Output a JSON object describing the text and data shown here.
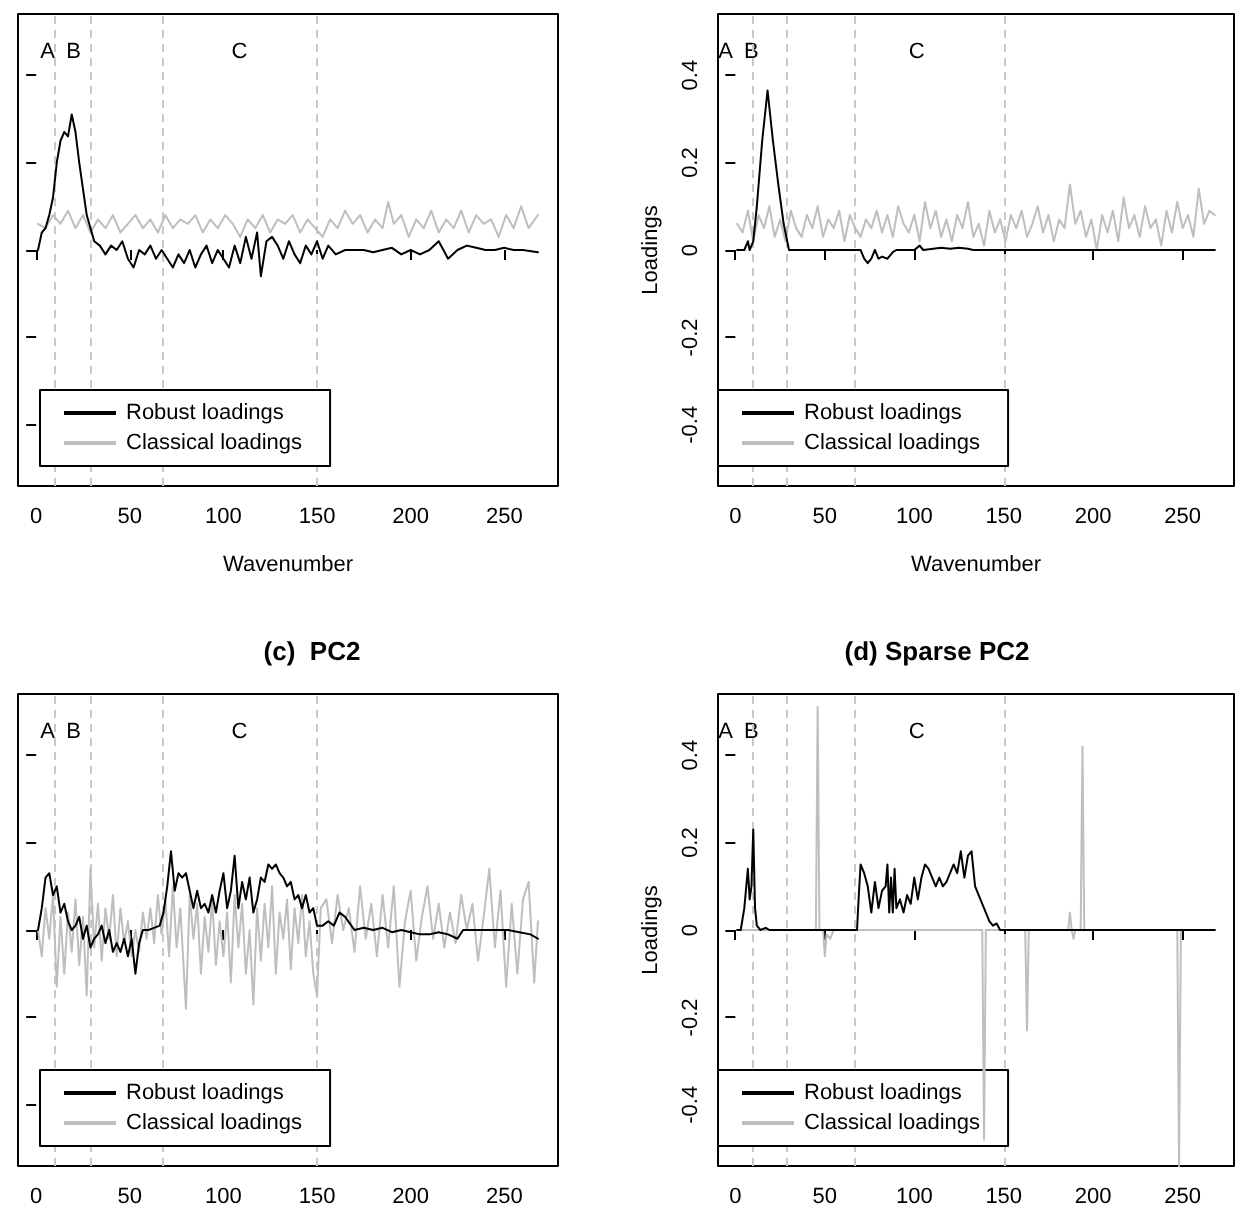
{
  "chart_data": [
    {
      "type": "line",
      "xlabel": "Wavenumber",
      "xlim": [
        -9.7,
        278.7
      ],
      "xticks": [
        0,
        50,
        100,
        150,
        200,
        250
      ],
      "ylim": [
        -0.54,
        0.54
      ],
      "yticks": [
        {
          "value": -0.4,
          "label": null
        },
        {
          "value": -0.2,
          "label": null
        },
        {
          "value": 0,
          "label": null
        },
        {
          "value": 0.2,
          "label": null
        },
        {
          "value": 0.4,
          "label": null
        }
      ],
      "tick_labels": "x",
      "grid": false,
      "legend": "bottom left",
      "marker": "none",
      "line_style": "solid",
      "ref_lines": [
        {
          "axis": "x",
          "value": 10,
          "color": "#c8c8c8",
          "line_style": "dashed"
        },
        {
          "axis": "x",
          "value": 29,
          "color": "#c8c8c8",
          "line_style": "dashed"
        },
        {
          "axis": "x",
          "value": 67,
          "color": "#c8c8c8",
          "line_style": "dashed"
        },
        {
          "axis": "x",
          "value": 150,
          "color": "#c8c8c8",
          "line_style": "dashed"
        }
      ],
      "annotations": [
        "A",
        "B",
        "C"
      ],
      "series": [
        {
          "name": "Robust loadings",
          "color": "#000000",
          "x": [
            1,
            3,
            5,
            7,
            9,
            11,
            13,
            15,
            17,
            19,
            21,
            23,
            25,
            27,
            29,
            31,
            34,
            37,
            40,
            43,
            46,
            49,
            52,
            55,
            58,
            61,
            64,
            67,
            70,
            73,
            76,
            79,
            82,
            85,
            88,
            91,
            94,
            97,
            100,
            103,
            106,
            109,
            112,
            115,
            118,
            120,
            123,
            126,
            129,
            132,
            135,
            138,
            141,
            144,
            147,
            150,
            153,
            156,
            160,
            165,
            170,
            175,
            180,
            185,
            190,
            195,
            200,
            205,
            210,
            215,
            220,
            225,
            230,
            235,
            240,
            245,
            250,
            255,
            260,
            268
          ],
          "values": [
            0.0,
            0.04,
            0.05,
            0.08,
            0.12,
            0.2,
            0.25,
            0.27,
            0.26,
            0.31,
            0.27,
            0.2,
            0.14,
            0.08,
            0.05,
            0.02,
            0.01,
            -0.01,
            0.01,
            0.0,
            0.02,
            -0.02,
            -0.04,
            0.0,
            -0.01,
            0.01,
            -0.02,
            0.0,
            -0.02,
            -0.04,
            -0.01,
            -0.03,
            0.0,
            -0.04,
            -0.01,
            0.01,
            -0.03,
            0.0,
            -0.02,
            -0.04,
            0.01,
            -0.03,
            0.03,
            -0.02,
            0.04,
            -0.06,
            0.02,
            0.03,
            0.01,
            -0.02,
            0.02,
            -0.01,
            -0.03,
            0.01,
            -0.01,
            0.02,
            -0.02,
            0.01,
            -0.01,
            0.0,
            0.0,
            0.0,
            -0.005,
            0.0,
            0.005,
            -0.01,
            0.0,
            -0.01,
            0.0,
            0.02,
            -0.02,
            0.0,
            0.01,
            0.005,
            0.0,
            0.0,
            0.005,
            0.0,
            0.0,
            -0.005
          ]
        },
        {
          "name": "Classical loadings",
          "color": "#bebebe",
          "x": [
            1,
            5,
            9,
            13,
            17,
            21,
            25,
            29,
            33,
            37,
            41,
            45,
            49,
            53,
            57,
            61,
            65,
            69,
            73,
            77,
            81,
            85,
            89,
            93,
            97,
            101,
            105,
            109,
            113,
            117,
            121,
            125,
            129,
            133,
            137,
            141,
            145,
            149,
            153,
            157,
            161,
            165,
            169,
            173,
            177,
            181,
            185,
            188,
            191,
            195,
            199,
            203,
            207,
            211,
            215,
            219,
            223,
            227,
            231,
            235,
            239,
            243,
            247,
            251,
            255,
            259,
            263,
            268
          ],
          "values": [
            0.06,
            0.05,
            0.08,
            0.06,
            0.09,
            0.05,
            0.08,
            0.04,
            0.07,
            0.05,
            0.08,
            0.04,
            0.06,
            0.08,
            0.05,
            0.07,
            0.04,
            0.08,
            0.05,
            0.07,
            0.06,
            0.08,
            0.04,
            0.07,
            0.05,
            0.08,
            0.06,
            0.03,
            0.07,
            0.05,
            0.08,
            0.04,
            0.07,
            0.06,
            0.08,
            0.04,
            0.07,
            0.05,
            0.03,
            0.07,
            0.05,
            0.09,
            0.06,
            0.08,
            0.04,
            0.07,
            0.05,
            0.11,
            0.06,
            0.08,
            0.03,
            0.07,
            0.05,
            0.09,
            0.04,
            0.07,
            0.05,
            0.09,
            0.04,
            0.08,
            0.06,
            0.07,
            0.03,
            0.08,
            0.05,
            0.1,
            0.05,
            0.08
          ]
        }
      ]
    },
    {
      "type": "line",
      "xlabel": "Wavenumber",
      "ylabel": "Loadings",
      "xlim": [
        -9.7,
        278.7
      ],
      "xticks": [
        0,
        50,
        100,
        150,
        200,
        250
      ],
      "ylim": [
        -0.54,
        0.54
      ],
      "yticks": [
        -0.4,
        -0.2,
        0.0,
        0.2,
        0.4
      ],
      "grid": false,
      "legend": "bottom left",
      "marker": "none",
      "line_style": "solid",
      "ref_lines": [
        {
          "axis": "x",
          "value": 10,
          "color": "#c8c8c8",
          "line_style": "dashed"
        },
        {
          "axis": "x",
          "value": 29,
          "color": "#c8c8c8",
          "line_style": "dashed"
        },
        {
          "axis": "x",
          "value": 67,
          "color": "#c8c8c8",
          "line_style": "dashed"
        },
        {
          "axis": "x",
          "value": 150,
          "color": "#c8c8c8",
          "line_style": "dashed"
        }
      ],
      "annotations": [
        "A",
        "B",
        "C"
      ],
      "series": [
        {
          "name": "Robust loadings",
          "color": "#000000",
          "x": [
            1,
            5,
            7,
            8,
            10,
            12,
            15,
            18,
            21,
            24,
            27,
            30,
            70,
            72,
            74,
            76,
            78,
            80,
            82,
            85,
            88,
            90,
            100,
            103,
            105,
            115,
            120,
            125,
            130,
            133,
            268
          ],
          "values": [
            0,
            0,
            0.02,
            0.0,
            0.02,
            0.1,
            0.25,
            0.365,
            0.25,
            0.15,
            0.06,
            0.0,
            0.0,
            -0.02,
            -0.03,
            -0.02,
            0.0,
            -0.02,
            -0.015,
            -0.02,
            -0.005,
            0.0,
            0.0,
            0.01,
            0.0,
            0.005,
            0.003,
            0.005,
            0.003,
            0.0,
            0
          ]
        },
        {
          "name": "Classical loadings",
          "color": "#bebebe",
          "x": [
            1,
            4,
            7,
            10,
            13,
            16,
            19,
            22,
            25,
            28,
            31,
            34,
            37,
            40,
            43,
            46,
            49,
            52,
            55,
            58,
            61,
            64,
            67,
            70,
            73,
            76,
            79,
            82,
            85,
            88,
            91,
            94,
            97,
            100,
            103,
            106,
            109,
            112,
            115,
            118,
            121,
            124,
            127,
            130,
            133,
            136,
            139,
            142,
            145,
            148,
            151,
            154,
            157,
            160,
            163,
            166,
            169,
            172,
            175,
            178,
            181,
            184,
            187,
            190,
            193,
            196,
            199,
            202,
            205,
            208,
            211,
            214,
            217,
            220,
            223,
            226,
            229,
            232,
            235,
            238,
            241,
            244,
            247,
            250,
            253,
            256,
            259,
            262,
            265,
            268
          ],
          "values": [
            0.06,
            0.04,
            0.09,
            0.02,
            0.08,
            0.05,
            0.1,
            0.03,
            0.07,
            0.02,
            0.09,
            0.05,
            0.03,
            0.08,
            0.05,
            0.1,
            0.03,
            0.07,
            0.05,
            0.09,
            0.02,
            0.08,
            0.05,
            0.03,
            0.07,
            0.05,
            0.09,
            0.04,
            0.08,
            0.03,
            0.1,
            0.06,
            0.04,
            0.08,
            0.02,
            0.11,
            0.05,
            0.09,
            0.03,
            0.07,
            0.02,
            0.08,
            0.05,
            0.11,
            0.03,
            0.06,
            0.01,
            0.09,
            0.04,
            0.07,
            0.02,
            0.08,
            0.05,
            0.09,
            0.03,
            0.06,
            0.1,
            0.04,
            0.08,
            0.02,
            0.07,
            0.05,
            0.15,
            0.06,
            0.09,
            0.03,
            0.07,
            0.0,
            0.08,
            0.04,
            0.09,
            0.02,
            0.12,
            0.05,
            0.08,
            0.03,
            0.1,
            0.05,
            0.07,
            0.01,
            0.09,
            0.04,
            0.11,
            0.05,
            0.08,
            0.03,
            0.14,
            0.06,
            0.09,
            0.08
          ]
        }
      ]
    },
    {
      "type": "line",
      "title": "(c)  PC2",
      "xlim": [
        -9.7,
        278.7
      ],
      "xticks": [
        0,
        50,
        100,
        150,
        200,
        250
      ],
      "ylim": [
        -0.54,
        0.54
      ],
      "yticks": [
        {
          "value": -0.4,
          "label": null
        },
        {
          "value": -0.2,
          "label": null
        },
        {
          "value": 0,
          "label": null
        },
        {
          "value": 0.2,
          "label": null
        },
        {
          "value": 0.4,
          "label": null
        }
      ],
      "tick_labels": "x",
      "grid": false,
      "legend": "bottom left",
      "marker": "none",
      "line_style": "solid",
      "ref_lines": [
        {
          "axis": "x",
          "value": 10,
          "color": "#c8c8c8",
          "line_style": "dashed"
        },
        {
          "axis": "x",
          "value": 29,
          "color": "#c8c8c8",
          "line_style": "dashed"
        },
        {
          "axis": "x",
          "value": 67,
          "color": "#c8c8c8",
          "line_style": "dashed"
        },
        {
          "axis": "x",
          "value": 150,
          "color": "#c8c8c8",
          "line_style": "dashed"
        }
      ],
      "annotations": [
        "A",
        "B",
        "C"
      ],
      "series": [
        {
          "name": "Robust loadings",
          "color": "#000000",
          "x": [
            1,
            3,
            5,
            7,
            9,
            11,
            13,
            15,
            17,
            19,
            21,
            23,
            25,
            27,
            29,
            31,
            33,
            35,
            37,
            39,
            41,
            43,
            45,
            47,
            49,
            51,
            53,
            55,
            57,
            60,
            63,
            66,
            68,
            70,
            72,
            74,
            76,
            78,
            80,
            82,
            84,
            86,
            88,
            90,
            92,
            94,
            96,
            98,
            100,
            102,
            104,
            106,
            108,
            110,
            112,
            114,
            116,
            118,
            120,
            122,
            124,
            126,
            128,
            130,
            132,
            134,
            136,
            138,
            140,
            142,
            144,
            146,
            148,
            150,
            153,
            156,
            159,
            162,
            165,
            170,
            175,
            180,
            185,
            190,
            195,
            200,
            205,
            210,
            215,
            220,
            225,
            228,
            232,
            238,
            245,
            252,
            258,
            264,
            268
          ],
          "values": [
            0.0,
            0.05,
            0.12,
            0.13,
            0.08,
            0.1,
            0.04,
            0.06,
            0.02,
            0.0,
            0.01,
            0.03,
            -0.02,
            0.01,
            -0.04,
            -0.02,
            -0.01,
            0.01,
            -0.03,
            0.0,
            -0.05,
            -0.03,
            -0.05,
            -0.02,
            -0.06,
            -0.02,
            -0.1,
            -0.03,
            0.0,
            0.0,
            0.005,
            0.01,
            0.04,
            0.1,
            0.18,
            0.09,
            0.13,
            0.12,
            0.13,
            0.09,
            0.05,
            0.09,
            0.05,
            0.06,
            0.04,
            0.08,
            0.04,
            0.09,
            0.13,
            0.05,
            0.09,
            0.17,
            0.05,
            0.11,
            0.07,
            0.12,
            0.04,
            0.07,
            0.12,
            0.11,
            0.15,
            0.14,
            0.15,
            0.13,
            0.12,
            0.1,
            0.11,
            0.07,
            0.08,
            0.05,
            0.08,
            0.04,
            0.05,
            0.01,
            0.01,
            0.02,
            0.01,
            0.04,
            0.03,
            0.0,
            0.005,
            0.0,
            0.005,
            -0.005,
            0.0,
            -0.005,
            -0.01,
            -0.01,
            -0.005,
            -0.01,
            -0.02,
            0.0,
            0.0,
            0.0,
            0.0,
            0.0,
            -0.005,
            -0.01,
            -0.02
          ]
        },
        {
          "name": "Classical loadings",
          "color": "#bebebe",
          "x": [
            1,
            3,
            5,
            7,
            9,
            11,
            13,
            15,
            17,
            19,
            21,
            23,
            25,
            27,
            29,
            31,
            33,
            35,
            37,
            39,
            41,
            43,
            45,
            47,
            49,
            51,
            53,
            55,
            57,
            59,
            61,
            63,
            65,
            67,
            69,
            71,
            73,
            75,
            77,
            80,
            82,
            84,
            86,
            88,
            90,
            92,
            94,
            96,
            98,
            100,
            102,
            104,
            106,
            108,
            110,
            112,
            114,
            116,
            118,
            120,
            122,
            124,
            126,
            128,
            130,
            132,
            134,
            136,
            138,
            140,
            142,
            144,
            146,
            148,
            150,
            152,
            155,
            158,
            161,
            164,
            167,
            170,
            173,
            176,
            179,
            182,
            185,
            188,
            191,
            194,
            197,
            200,
            203,
            206,
            209,
            212,
            215,
            218,
            221,
            224,
            227,
            230,
            233,
            236,
            239,
            242,
            245,
            248,
            251,
            254,
            257,
            260,
            263,
            266,
            268
          ],
          "values": [
            0.0,
            -0.06,
            0.05,
            -0.02,
            0.08,
            -0.13,
            0.03,
            -0.1,
            0.04,
            -0.05,
            0.07,
            -0.08,
            0.03,
            -0.15,
            0.14,
            -0.04,
            0.06,
            -0.07,
            0.05,
            -0.02,
            0.08,
            -0.06,
            0.05,
            -0.03,
            0.02,
            -0.06,
            0.0,
            -0.05,
            0.04,
            -0.02,
            0.05,
            -0.03,
            0.08,
            -0.01,
            0.07,
            -0.06,
            0.1,
            -0.04,
            0.05,
            -0.18,
            0.08,
            -0.02,
            0.06,
            -0.1,
            0.03,
            -0.05,
            0.07,
            -0.08,
            0.02,
            -0.06,
            0.04,
            -0.12,
            0.08,
            -0.04,
            0.06,
            -0.1,
            0.0,
            -0.17,
            0.05,
            -0.07,
            0.06,
            -0.04,
            0.1,
            -0.1,
            0.04,
            -0.02,
            0.07,
            -0.09,
            0.05,
            -0.03,
            0.08,
            -0.06,
            0.02,
            -0.1,
            -0.15,
            0.05,
            0.07,
            -0.03,
            0.08,
            0.0,
            0.05,
            -0.05,
            0.1,
            -0.02,
            0.06,
            -0.06,
            0.08,
            -0.04,
            0.1,
            -0.13,
            0.02,
            0.09,
            -0.07,
            0.03,
            0.1,
            -0.02,
            0.06,
            -0.04,
            0.04,
            -0.03,
            0.08,
            0.0,
            0.06,
            -0.07,
            0.03,
            0.14,
            -0.04,
            0.09,
            -0.13,
            0.06,
            -0.1,
            0.07,
            0.11,
            -0.12,
            0.02
          ]
        }
      ]
    },
    {
      "type": "line",
      "title": "(d) Sparse PC2",
      "ylabel": "Loadings",
      "xlim": [
        -9.7,
        278.7
      ],
      "xticks": [
        0,
        50,
        100,
        150,
        200,
        250
      ],
      "ylim": [
        -0.54,
        0.54
      ],
      "yticks": [
        -0.4,
        -0.2,
        0.0,
        0.2,
        0.4
      ],
      "grid": false,
      "legend": "bottom left",
      "marker": "none",
      "line_style": "solid",
      "ref_lines": [
        {
          "axis": "x",
          "value": 10,
          "color": "#c8c8c8",
          "line_style": "dashed"
        },
        {
          "axis": "x",
          "value": 29,
          "color": "#c8c8c8",
          "line_style": "dashed"
        },
        {
          "axis": "x",
          "value": 67,
          "color": "#c8c8c8",
          "line_style": "dashed"
        },
        {
          "axis": "x",
          "value": 150,
          "color": "#c8c8c8",
          "line_style": "dashed"
        }
      ],
      "annotations": [
        "A",
        "B",
        "C"
      ],
      "series": [
        {
          "name": "Robust loadings",
          "color": "#000000",
          "x": [
            1,
            3,
            5,
            7,
            8,
            9,
            10,
            11,
            12,
            14,
            17,
            19,
            68,
            69,
            70,
            72,
            74,
            76,
            78,
            80,
            82,
            84,
            85,
            86,
            87,
            88,
            89,
            90,
            92,
            94,
            96,
            98,
            100,
            102,
            104,
            106,
            108,
            110,
            112,
            114,
            116,
            118,
            120,
            122,
            124,
            126,
            128,
            130,
            132,
            134,
            136,
            138,
            140,
            142,
            144,
            146,
            148,
            150,
            268
          ],
          "values": [
            0,
            0.0,
            0.05,
            0.14,
            0.07,
            0.1,
            0.23,
            0.05,
            0.01,
            0.0,
            0.005,
            0.0,
            0.0,
            0.08,
            0.15,
            0.13,
            0.1,
            0.04,
            0.11,
            0.05,
            0.09,
            0.1,
            0.15,
            0.04,
            0.12,
            0.04,
            0.14,
            0.05,
            0.07,
            0.04,
            0.08,
            0.06,
            0.12,
            0.07,
            0.12,
            0.15,
            0.14,
            0.12,
            0.1,
            0.12,
            0.1,
            0.11,
            0.13,
            0.15,
            0.13,
            0.18,
            0.12,
            0.17,
            0.18,
            0.1,
            0.08,
            0.06,
            0.04,
            0.02,
            0.01,
            0.015,
            0.0,
            0.0,
            0
          ]
        },
        {
          "name": "Classical loadings",
          "color": "#bebebe",
          "x": [
            1,
            45,
            46,
            47,
            49,
            50,
            51,
            53,
            55,
            138,
            139,
            140,
            162,
            163,
            164,
            186,
            187,
            188,
            189,
            190,
            193,
            194,
            195,
            247,
            248,
            249,
            268
          ],
          "values": [
            0,
            0,
            0.51,
            0.0,
            0.0,
            -0.06,
            -0.01,
            -0.02,
            0.0,
            0.0,
            -0.48,
            0.0,
            0.0,
            -0.23,
            0.0,
            0.0,
            0.04,
            0.0,
            -0.02,
            0.0,
            0.0,
            0.42,
            0.0,
            0.0,
            -0.54,
            0.0,
            0
          ]
        }
      ]
    }
  ]
}
